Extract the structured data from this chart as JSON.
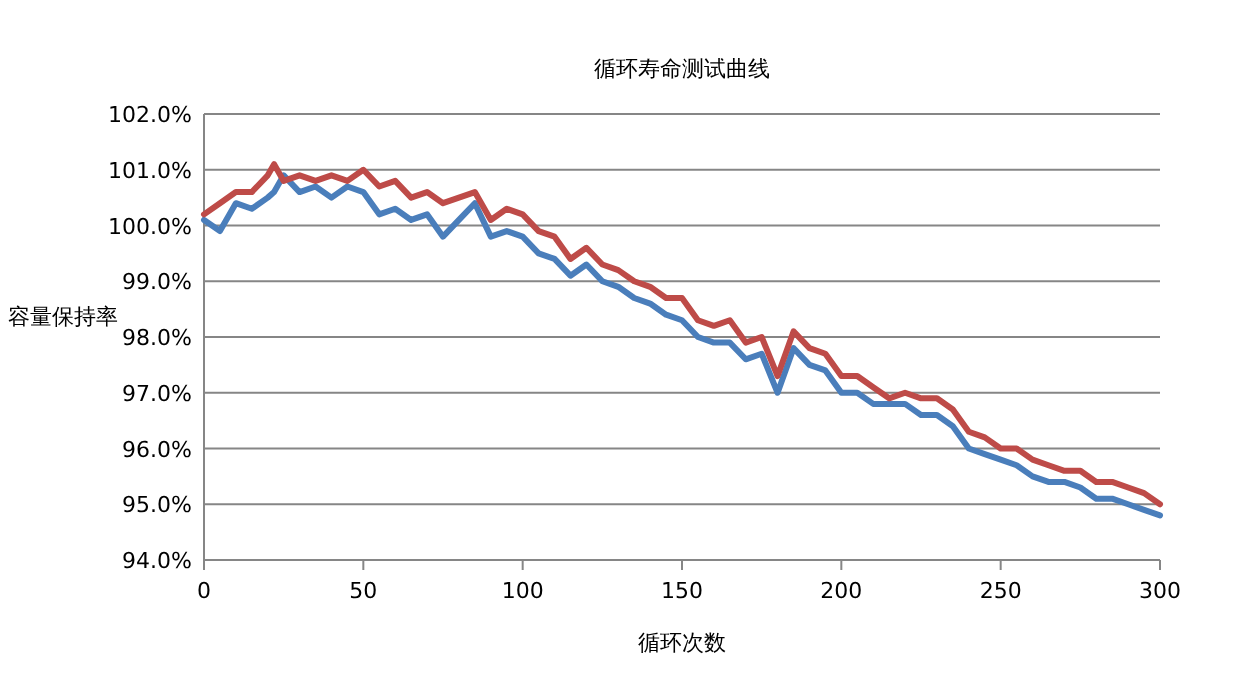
{
  "chart_data": {
    "type": "line",
    "title": "循环寿命测试曲线",
    "xlabel": "循环次数",
    "ylabel": "容量保持率",
    "x": [
      0,
      5,
      10,
      15,
      20,
      22,
      25,
      30,
      35,
      40,
      45,
      50,
      55,
      60,
      65,
      70,
      75,
      80,
      85,
      90,
      95,
      100,
      105,
      110,
      115,
      120,
      125,
      130,
      135,
      140,
      145,
      150,
      155,
      160,
      165,
      170,
      175,
      180,
      185,
      190,
      195,
      200,
      205,
      210,
      215,
      220,
      225,
      230,
      235,
      240,
      245,
      250,
      255,
      260,
      265,
      270,
      275,
      280,
      285,
      290,
      295,
      300
    ],
    "series": [
      {
        "color": "#4a7ebb",
        "values": [
          100.1,
          99.9,
          100.4,
          100.3,
          100.5,
          100.6,
          100.9,
          100.6,
          100.7,
          100.5,
          100.7,
          100.6,
          100.2,
          100.3,
          100.1,
          100.2,
          99.8,
          100.1,
          100.4,
          99.8,
          99.9,
          99.8,
          99.5,
          99.4,
          99.1,
          99.3,
          99.0,
          98.9,
          98.7,
          98.6,
          98.4,
          98.3,
          98.0,
          97.9,
          97.9,
          97.6,
          97.7,
          97.0,
          97.8,
          97.5,
          97.4,
          97.0,
          97.0,
          96.8,
          96.8,
          96.8,
          96.6,
          96.6,
          96.4,
          96.0,
          95.9,
          95.8,
          95.7,
          95.5,
          95.4,
          95.4,
          95.3,
          95.1,
          95.1,
          95.0,
          94.9,
          94.8
        ]
      },
      {
        "color": "#be4b48",
        "values": [
          100.2,
          100.4,
          100.6,
          100.6,
          100.9,
          101.1,
          100.8,
          100.9,
          100.8,
          100.9,
          100.8,
          101.0,
          100.7,
          100.8,
          100.5,
          100.6,
          100.4,
          100.5,
          100.6,
          100.1,
          100.3,
          100.2,
          99.9,
          99.8,
          99.4,
          99.6,
          99.3,
          99.2,
          99.0,
          98.9,
          98.7,
          98.7,
          98.3,
          98.2,
          98.3,
          97.9,
          98.0,
          97.3,
          98.1,
          97.8,
          97.7,
          97.3,
          97.3,
          97.1,
          96.9,
          97.0,
          96.9,
          96.9,
          96.7,
          96.3,
          96.2,
          96.0,
          96.0,
          95.8,
          95.7,
          95.6,
          95.6,
          95.4,
          95.4,
          95.3,
          95.2,
          95.0
        ]
      }
    ],
    "xlim": [
      0,
      300
    ],
    "xticks": [
      0,
      50,
      100,
      150,
      200,
      250,
      300
    ],
    "ylim": [
      94,
      102
    ],
    "yticks": [
      {
        "value": 94,
        "label": "94.0%"
      },
      {
        "value": 95,
        "label": "95.0%"
      },
      {
        "value": 96,
        "label": "96.0%"
      },
      {
        "value": 97,
        "label": "97.0%"
      },
      {
        "value": 98,
        "label": "98.0%"
      },
      {
        "value": 99,
        "label": "99.0%"
      },
      {
        "value": 100,
        "label": "100.0%"
      },
      {
        "value": 101,
        "label": "101.0%"
      },
      {
        "value": 102,
        "label": "102.0%"
      }
    ],
    "grid": "y",
    "marker": "none",
    "line_style": "solid"
  }
}
